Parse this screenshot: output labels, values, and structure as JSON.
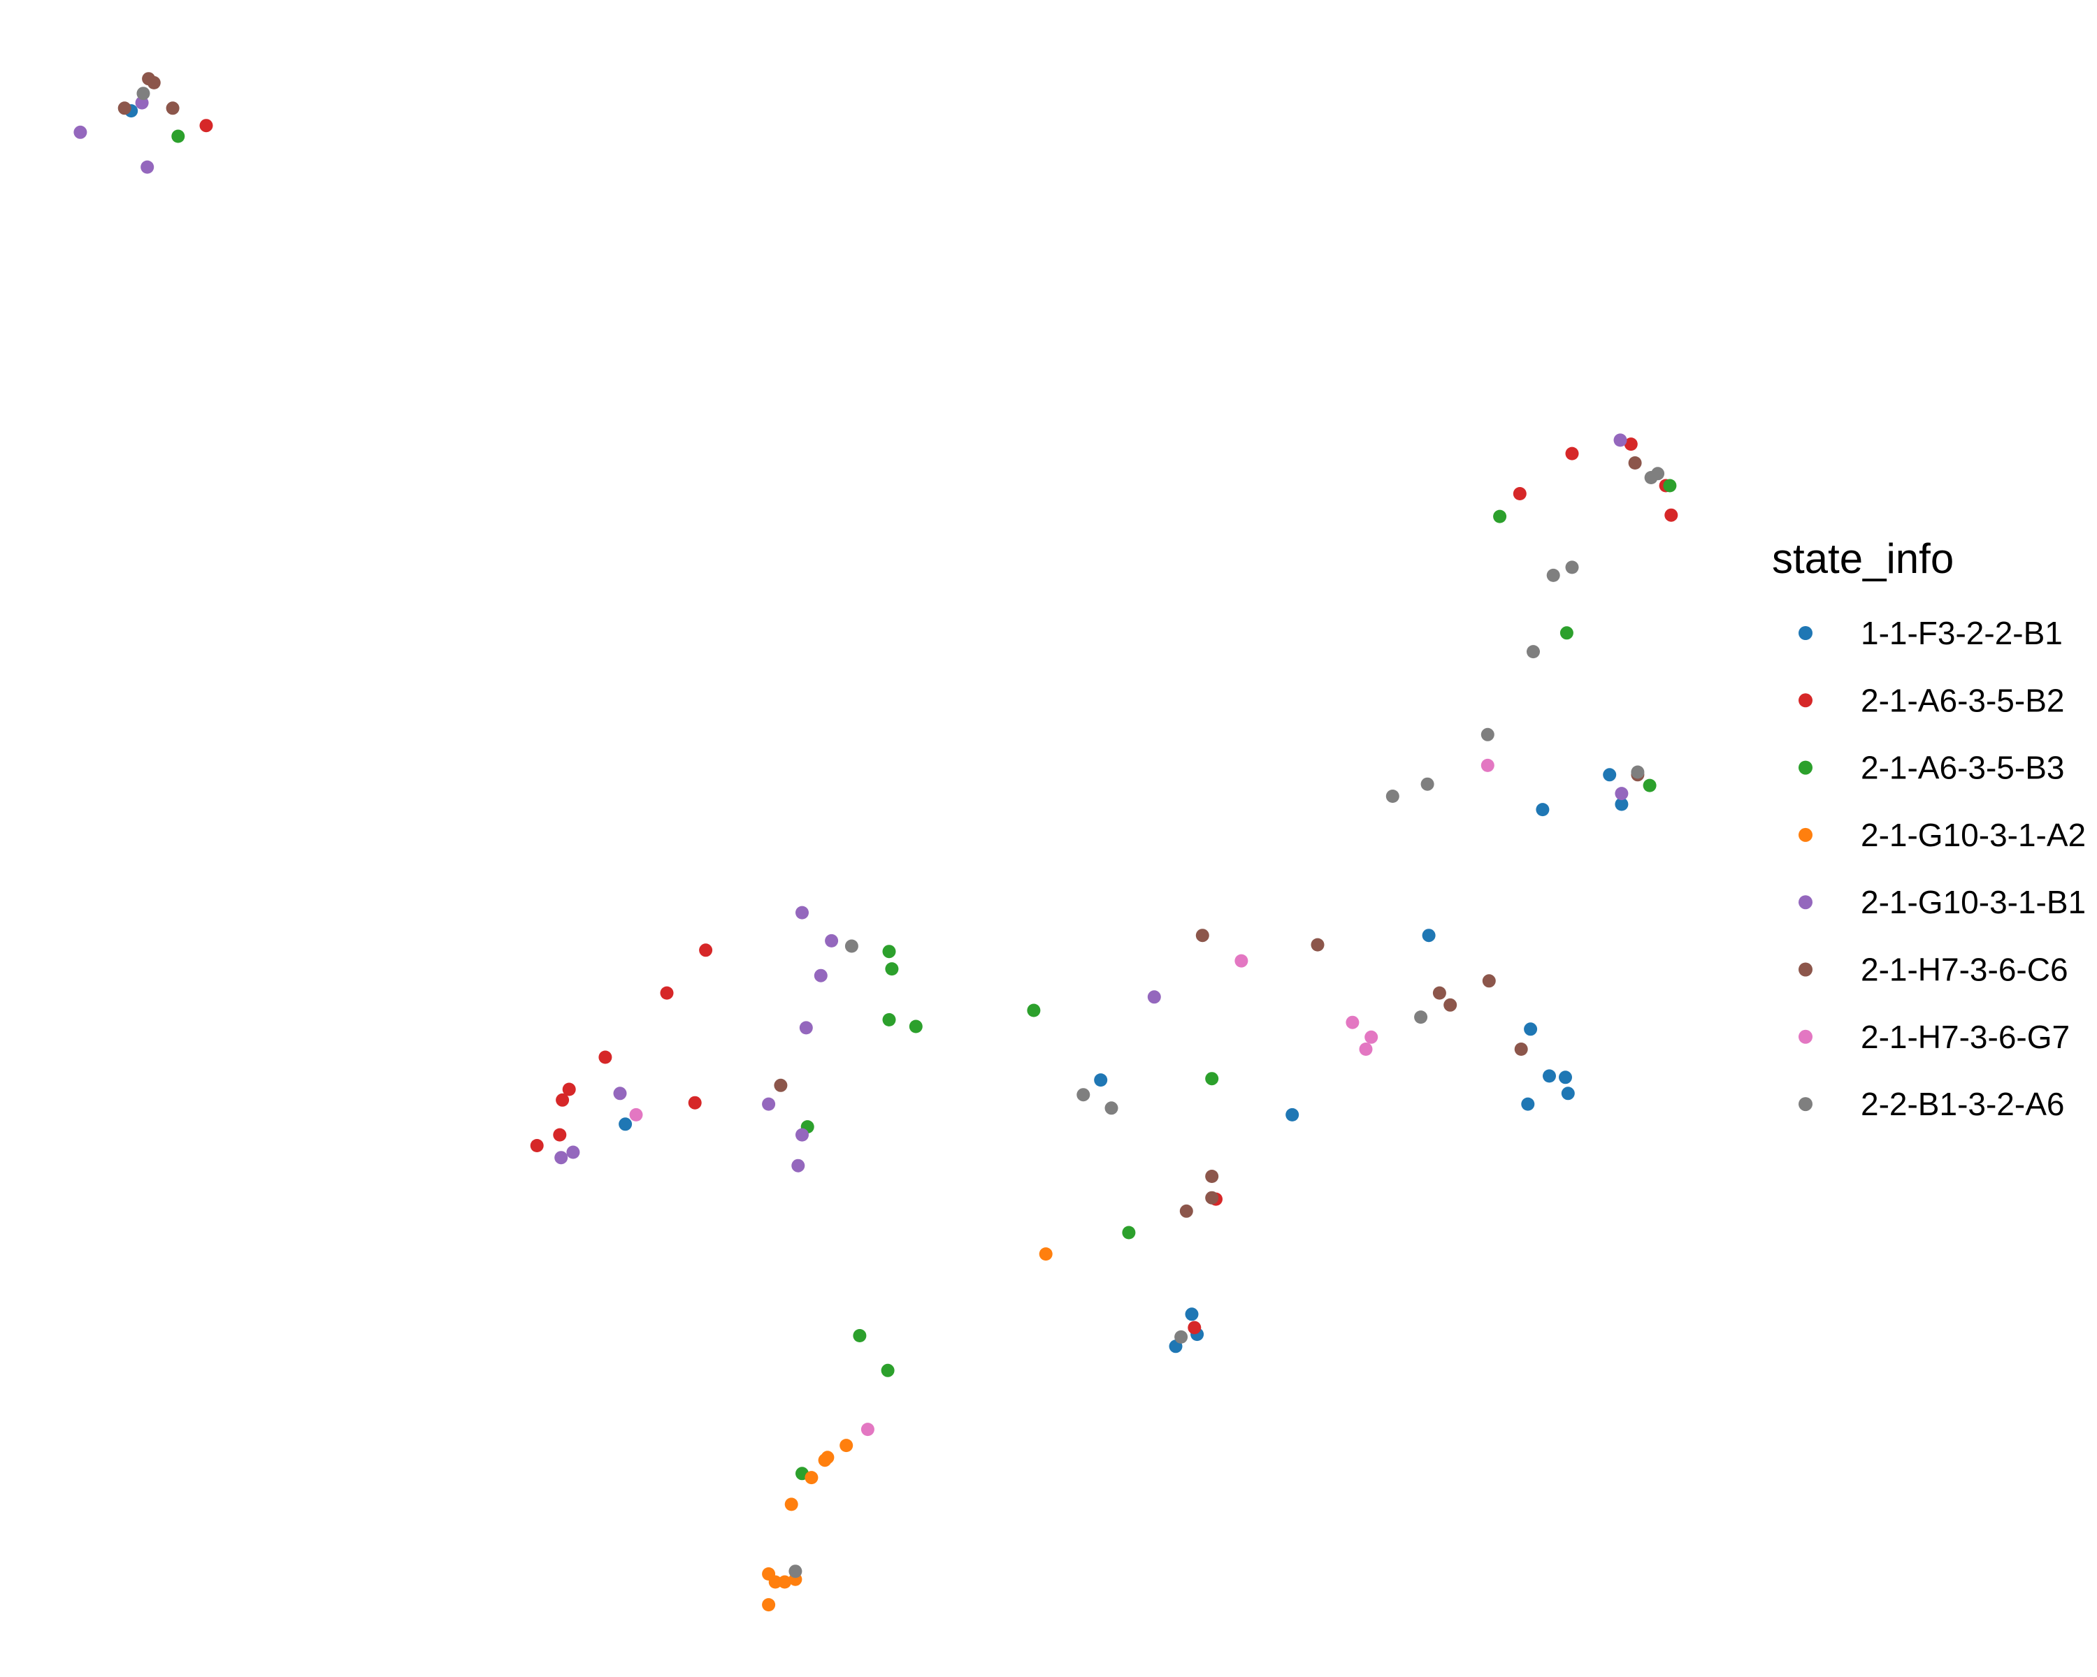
{
  "chart_data": {
    "type": "scatter",
    "title": "",
    "xlabel": "",
    "ylabel": "",
    "grid": false,
    "axes_visible": false,
    "xlim": [
      0,
      1300
    ],
    "ylim": [
      0,
      1250
    ],
    "legend": {
      "title": "state_info",
      "placement": "right"
    },
    "series": [
      {
        "name": "1-1-F3-2-2-B1",
        "color": "#1f77b4",
        "points": [
          [
            98,
            1170
          ],
          [
            467,
            413
          ],
          [
            822,
            446
          ],
          [
            878,
            247
          ],
          [
            890,
            271
          ],
          [
            894,
            256
          ],
          [
            965,
            420
          ],
          [
            1067,
            554
          ],
          [
            1143,
            484
          ],
          [
            1141,
            428
          ],
          [
            1157,
            449
          ],
          [
            1169,
            448
          ],
          [
            1171,
            436
          ],
          [
            1152,
            648
          ],
          [
            1202,
            674
          ],
          [
            1211,
            652
          ]
        ]
      },
      {
        "name": "2-1-A6-3-5-B2",
        "color": "#d62728",
        "points": [
          [
            154,
            1159
          ],
          [
            401,
            397
          ],
          [
            418,
            405
          ],
          [
            420,
            431
          ],
          [
            425,
            439
          ],
          [
            452,
            463
          ],
          [
            498,
            511
          ],
          [
            519,
            429
          ],
          [
            527,
            543
          ],
          [
            892,
            261
          ],
          [
            908,
            357
          ],
          [
            1135,
            884
          ],
          [
            1174,
            914
          ],
          [
            1218,
            921
          ],
          [
            1244,
            890
          ],
          [
            1248,
            868
          ]
        ]
      },
      {
        "name": "2-1-A6-3-5-B3",
        "color": "#2ca02c",
        "points": [
          [
            133,
            1151
          ],
          [
            599,
            152
          ],
          [
            603,
            411
          ],
          [
            642,
            255
          ],
          [
            663,
            229
          ],
          [
            664,
            491
          ],
          [
            664,
            542
          ],
          [
            666,
            529
          ],
          [
            684,
            486
          ],
          [
            772,
            498
          ],
          [
            843,
            332
          ],
          [
            905,
            447
          ],
          [
            1120,
            867
          ],
          [
            1170,
            780
          ],
          [
            1232,
            666
          ],
          [
            1247,
            890
          ]
        ]
      },
      {
        "name": "2-1-G10-3-1-A2",
        "color": "#ff7f0e",
        "points": [
          [
            574,
            54
          ],
          [
            574,
            77
          ],
          [
            579,
            71
          ],
          [
            586,
            71
          ],
          [
            594,
            73
          ],
          [
            591,
            129
          ],
          [
            606,
            149
          ],
          [
            616,
            162
          ],
          [
            618,
            164
          ],
          [
            632,
            173
          ],
          [
            781,
            316
          ]
        ]
      },
      {
        "name": "2-1-G10-3-1-B1",
        "color": "#9467bd",
        "points": [
          [
            60,
            1154
          ],
          [
            106,
            1176
          ],
          [
            110,
            1128
          ],
          [
            419,
            388
          ],
          [
            428,
            392
          ],
          [
            463,
            436
          ],
          [
            574,
            428
          ],
          [
            596,
            382
          ],
          [
            599,
            405
          ],
          [
            602,
            485
          ],
          [
            613,
            524
          ],
          [
            599,
            571
          ],
          [
            621,
            550
          ],
          [
            862,
            508
          ],
          [
            1211,
            660
          ],
          [
            1210,
            924
          ]
        ]
      },
      {
        "name": "2-1-H7-3-6-C6",
        "color": "#8c564b",
        "points": [
          [
            93,
            1172
          ],
          [
            111,
            1194
          ],
          [
            115,
            1191
          ],
          [
            129,
            1172
          ],
          [
            583,
            442
          ],
          [
            886,
            348
          ],
          [
            905,
            358
          ],
          [
            905,
            374
          ],
          [
            898,
            554
          ],
          [
            984,
            547
          ],
          [
            1075,
            511
          ],
          [
            1083,
            502
          ],
          [
            1112,
            520
          ],
          [
            1136,
            469
          ],
          [
            1221,
            907
          ],
          [
            1223,
            674
          ]
        ]
      },
      {
        "name": "2-1-H7-3-6-G7",
        "color": "#e377c2",
        "points": [
          [
            475,
            420
          ],
          [
            648,
            185
          ],
          [
            927,
            535
          ],
          [
            1010,
            489
          ],
          [
            1020,
            469
          ],
          [
            1024,
            478
          ],
          [
            1111,
            681
          ]
        ]
      },
      {
        "name": "2-2-B1-3-2-A6",
        "color": "#7f7f7f",
        "points": [
          [
            107,
            1183
          ],
          [
            594,
            79
          ],
          [
            636,
            546
          ],
          [
            809,
            435
          ],
          [
            830,
            425
          ],
          [
            882,
            254
          ],
          [
            1040,
            658
          ],
          [
            1066,
            667
          ],
          [
            1061,
            493
          ],
          [
            1111,
            704
          ],
          [
            1145,
            766
          ],
          [
            1160,
            823
          ],
          [
            1174,
            829
          ],
          [
            1223,
            676
          ],
          [
            1233,
            896
          ],
          [
            1238,
            899
          ]
        ]
      }
    ]
  }
}
